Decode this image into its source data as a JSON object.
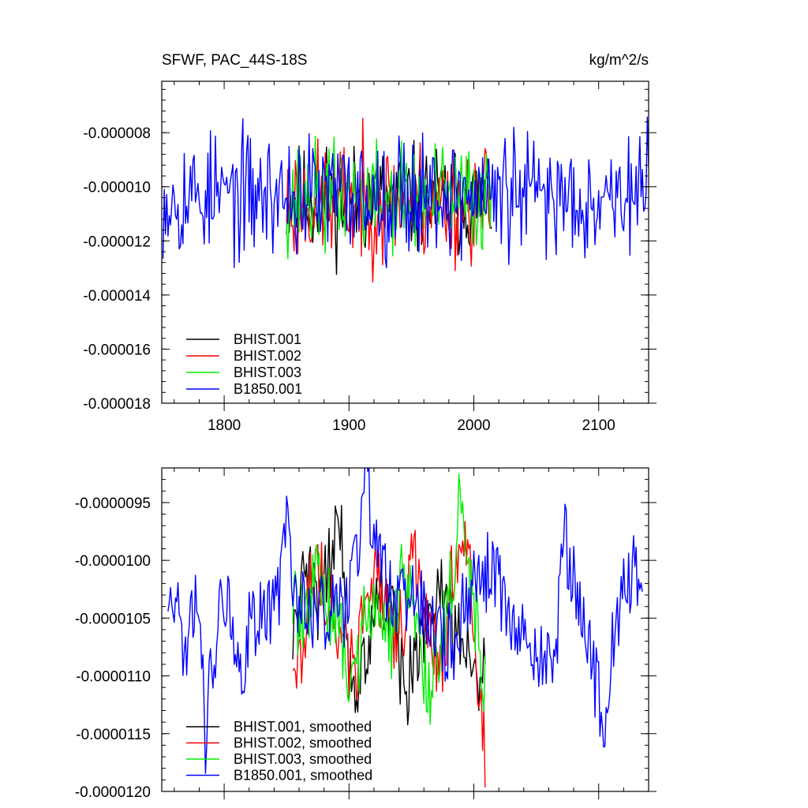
{
  "chart_data": [
    {
      "type": "line",
      "title": "SFWF, PAC_44S-18S",
      "units": "kg/m^2/s",
      "xlabel": "",
      "ylabel": "",
      "xlim": [
        1750,
        2140
      ],
      "ylim": [
        -1.8e-05,
        -6.1e-06
      ],
      "xticks": [
        1800,
        1900,
        2000,
        2100
      ],
      "xtick_labels": [
        "1800",
        "1900",
        "2000",
        "2100"
      ],
      "yticks": [
        -8e-06,
        -1e-05,
        -1.2e-05,
        -1.4e-05,
        -1.6e-05,
        -1.8e-05
      ],
      "ytick_labels": [
        "-0.000008",
        "-0.000010",
        "-0.000012",
        "-0.000014",
        "-0.000016",
        "-0.000018"
      ],
      "legend_position": "bottom-left",
      "series": [
        {
          "name": "BHIST.001",
          "color": "#000000",
          "start": 1850,
          "end": 2014,
          "mean": -1.05e-05,
          "amp": 1.6e-06,
          "seed": 11
        },
        {
          "name": "BHIST.002",
          "color": "#ff0000",
          "start": 1850,
          "end": 2014,
          "mean": -1.06e-05,
          "amp": 1.8e-06,
          "seed": 23
        },
        {
          "name": "BHIST.003",
          "color": "#00ee00",
          "start": 1850,
          "end": 2014,
          "mean": -1.04e-05,
          "amp": 1.6e-06,
          "seed": 37
        },
        {
          "name": "B1850.001",
          "color": "#0000ff",
          "start": 1751,
          "end": 2140,
          "mean": -1.03e-05,
          "amp": 1.8e-06,
          "seed": 53
        }
      ]
    },
    {
      "type": "line",
      "title": "",
      "xlabel": "",
      "ylabel": "",
      "xlim": [
        1750,
        2140
      ],
      "ylim": [
        -1.2e-05,
        -9.2e-06
      ],
      "xticks": [
        1800,
        1900,
        2000,
        2100
      ],
      "xtick_labels": [],
      "yticks": [
        -9.5e-06,
        -1e-05,
        -1.05e-05,
        -1.1e-05,
        -1.15e-05,
        -1.2e-05
      ],
      "ytick_labels": [
        "-0.0000095",
        "-0.0000100",
        "-0.0000105",
        "-0.0000110",
        "-0.0000115",
        "-0.0000120"
      ],
      "legend_position": "bottom-left",
      "series": [
        {
          "name": "BHIST.001, smoothed",
          "color": "#000000",
          "start": 1855,
          "end": 2009,
          "anchors": [
            [
              1855,
              -1.07e-05
            ],
            [
              1865,
              -1.01e-05
            ],
            [
              1875,
              -1.04e-05
            ],
            [
              1885,
              -1e-05
            ],
            [
              1890,
              -9.6e-06
            ],
            [
              1895,
              -9.9e-06
            ],
            [
              1900,
              -1.09e-05
            ],
            [
              1905,
              -1.12e-05
            ],
            [
              1915,
              -1.07e-05
            ],
            [
              1925,
              -1.03e-05
            ],
            [
              1935,
              -1.05e-05
            ],
            [
              1945,
              -1.12e-05
            ],
            [
              1955,
              -1.07e-05
            ],
            [
              1965,
              -1.05e-05
            ],
            [
              1975,
              -1.01e-05
            ],
            [
              1985,
              -1.07e-05
            ],
            [
              1995,
              -1.07e-05
            ],
            [
              2000,
              -1.1e-05
            ],
            [
              2009,
              -1.09e-05
            ]
          ]
        },
        {
          "name": "BHIST.002, smoothed",
          "color": "#ff0000",
          "start": 1855,
          "end": 2009,
          "anchors": [
            [
              1855,
              -1.08e-05
            ],
            [
              1862,
              -1.1e-05
            ],
            [
              1868,
              -1.02e-05
            ],
            [
              1875,
              -1.01e-05
            ],
            [
              1885,
              -1.04e-05
            ],
            [
              1895,
              -1.07e-05
            ],
            [
              1905,
              -1.1e-05
            ],
            [
              1915,
              -1e-05
            ],
            [
              1925,
              -1.03e-05
            ],
            [
              1935,
              -1.07e-05
            ],
            [
              1945,
              -1.05e-05
            ],
            [
              1950,
              -9.8e-06
            ],
            [
              1955,
              -1.02e-05
            ],
            [
              1965,
              -1.07e-05
            ],
            [
              1975,
              -1.09e-05
            ],
            [
              1985,
              -9.9e-06
            ],
            [
              1990,
              -9.8e-06
            ],
            [
              1998,
              -1.01e-05
            ],
            [
              2003,
              -1.1e-05
            ],
            [
              2009,
              -1.17e-05
            ]
          ]
        },
        {
          "name": "BHIST.003, smoothed",
          "color": "#00ee00",
          "start": 1855,
          "end": 2009,
          "anchors": [
            [
              1855,
              -1.04e-05
            ],
            [
              1865,
              -1.06e-05
            ],
            [
              1875,
              -1.01e-05
            ],
            [
              1885,
              -1.04e-05
            ],
            [
              1895,
              -1.07e-05
            ],
            [
              1905,
              -1.11e-05
            ],
            [
              1915,
              -1.03e-05
            ],
            [
              1925,
              -1.05e-05
            ],
            [
              1935,
              -1.07e-05
            ],
            [
              1945,
              -1e-05
            ],
            [
              1955,
              -1.07e-05
            ],
            [
              1965,
              -1.11e-05
            ],
            [
              1975,
              -1.06e-05
            ],
            [
              1985,
              -1e-05
            ],
            [
              1990,
              -9.3e-06
            ],
            [
              1995,
              -1.02e-05
            ],
            [
              2000,
              -1.04e-05
            ],
            [
              2005,
              -1.09e-05
            ],
            [
              2009,
              -1.1e-05
            ]
          ]
        },
        {
          "name": "B1850.001, smoothed",
          "color": "#0000ff",
          "start": 1755,
          "end": 2135,
          "anchors": [
            [
              1755,
              -1.03e-05
            ],
            [
              1762,
              -1.04e-05
            ],
            [
              1770,
              -1.08e-05
            ],
            [
              1780,
              -1.03e-05
            ],
            [
              1785,
              -1.15e-05
            ],
            [
              1790,
              -1.1e-05
            ],
            [
              1800,
              -1.02e-05
            ],
            [
              1805,
              -1.04e-05
            ],
            [
              1810,
              -1.11e-05
            ],
            [
              1820,
              -1.06e-05
            ],
            [
              1830,
              -1.04e-05
            ],
            [
              1840,
              -1.04e-05
            ],
            [
              1845,
              -1.02e-05
            ],
            [
              1850,
              -9.6e-06
            ],
            [
              1855,
              -1.02e-05
            ],
            [
              1865,
              -1.04e-05
            ],
            [
              1875,
              -1.05e-05
            ],
            [
              1885,
              -1.04e-05
            ],
            [
              1895,
              -1.05e-05
            ],
            [
              1905,
              -1e-05
            ],
            [
              1910,
              -9.7e-06
            ],
            [
              1914,
              -9.1e-06
            ],
            [
              1918,
              -9.8e-06
            ],
            [
              1925,
              -1.01e-05
            ],
            [
              1935,
              -1.03e-05
            ],
            [
              1945,
              -1.03e-05
            ],
            [
              1955,
              -1.04e-05
            ],
            [
              1965,
              -1.05e-05
            ],
            [
              1975,
              -1.07e-05
            ],
            [
              1985,
              -1.07e-05
            ],
            [
              1995,
              -1.03e-05
            ],
            [
              2005,
              -1.02e-05
            ],
            [
              2015,
              -1e-05
            ],
            [
              2025,
              -1.04e-05
            ],
            [
              2035,
              -1.07e-05
            ],
            [
              2045,
              -1.07e-05
            ],
            [
              2055,
              -1.08e-05
            ],
            [
              2065,
              -1.1e-05
            ],
            [
              2072,
              -9.8e-06
            ],
            [
              2080,
              -1.02e-05
            ],
            [
              2090,
              -1.06e-05
            ],
            [
              2100,
              -1.12e-05
            ],
            [
              2105,
              -1.13e-05
            ],
            [
              2112,
              -1.06e-05
            ],
            [
              2120,
              -1.02e-05
            ],
            [
              2130,
              -1.01e-05
            ],
            [
              2135,
              -1.02e-05
            ]
          ]
        }
      ]
    }
  ]
}
